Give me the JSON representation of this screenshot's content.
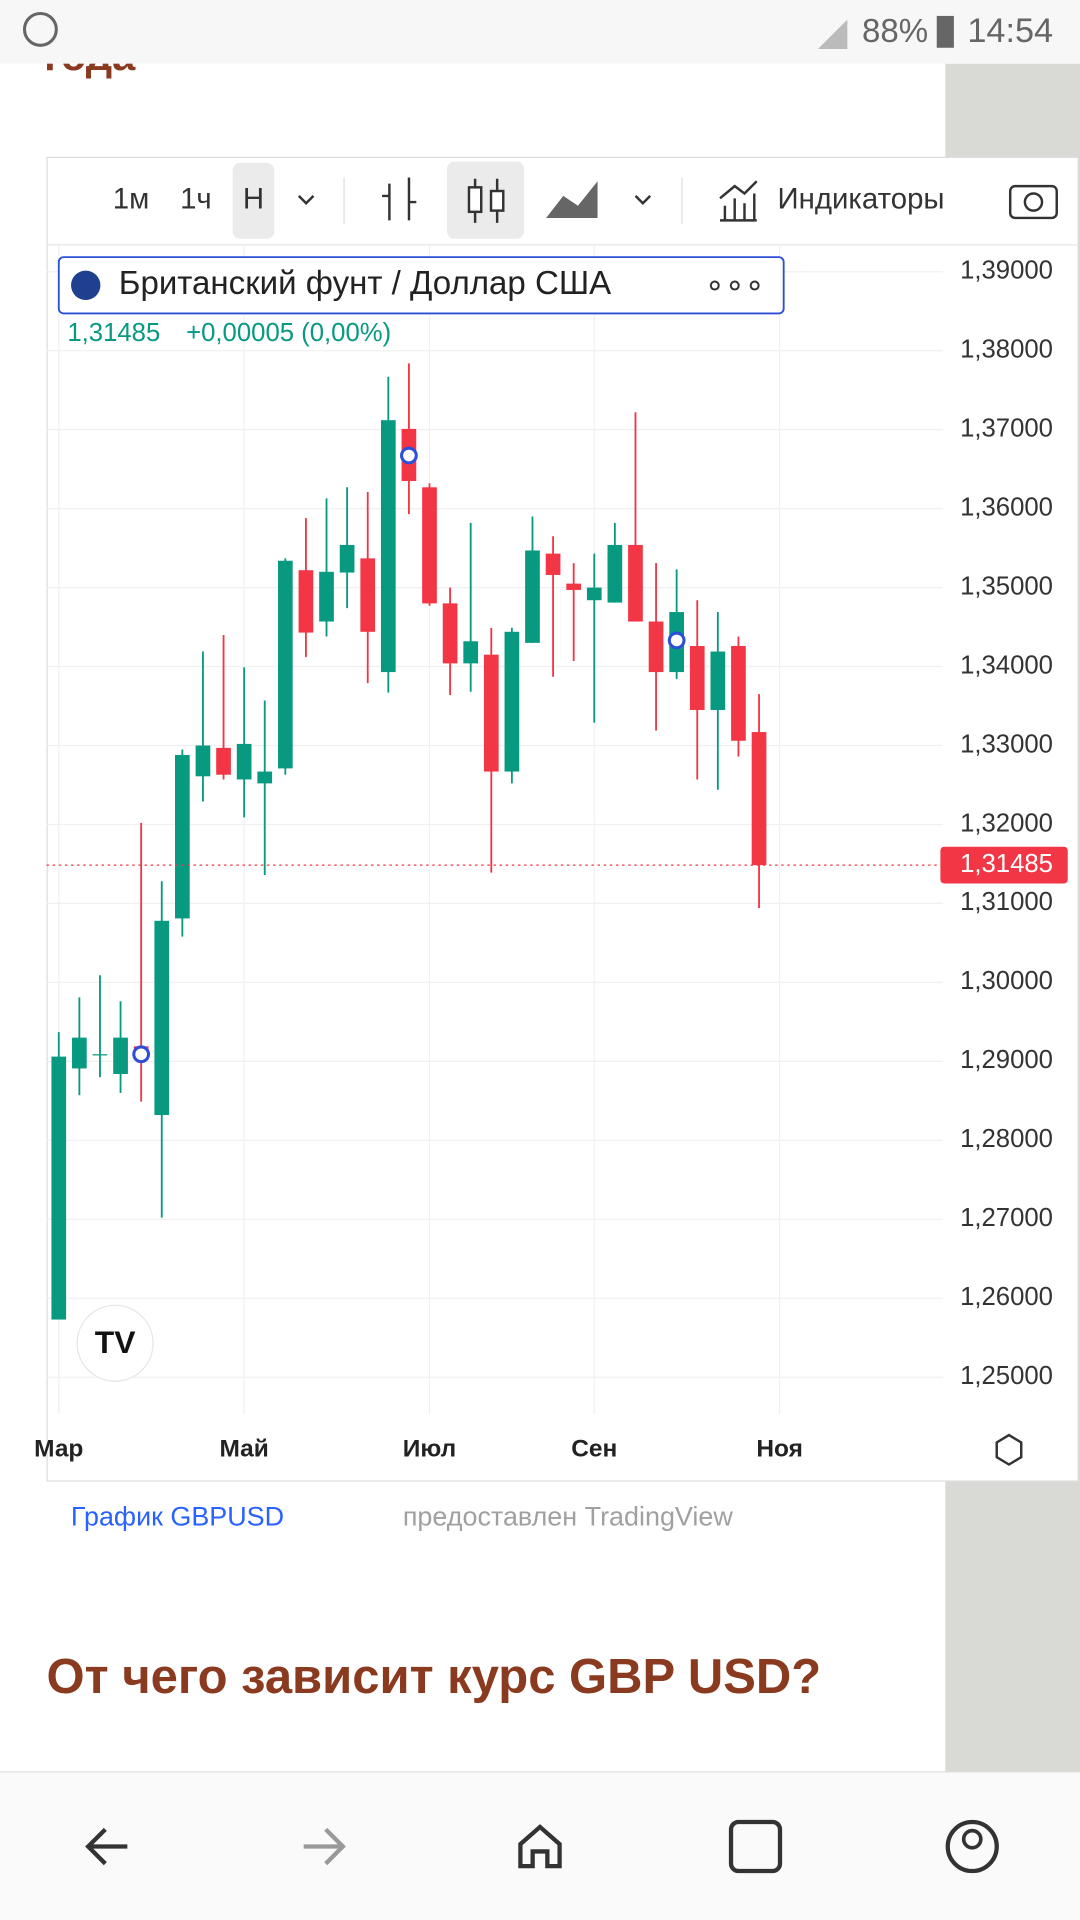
{
  "status_bar": {
    "battery": "88%",
    "time": "14:54"
  },
  "article": {
    "heading_top": "года",
    "heading": "От чего зависит курс GBP USD?"
  },
  "toolbar": {
    "intervals": [
      "1м",
      "1ч",
      "Н"
    ],
    "indicators": "Индикаторы"
  },
  "caption": {
    "link": "График GBPUSD",
    "text": "предоставлен TradingView"
  },
  "chart_data": {
    "type": "candlestick",
    "title": "Британский фунт / Доллар США",
    "change": "+0,00005 (0,00%)",
    "last_price": {
      "value": 1.31485,
      "label": "1,31485"
    },
    "x_labels": [
      "Мар",
      "Май",
      "Июл",
      "Сен",
      "Ноя"
    ],
    "up_color": "#089981",
    "down_color": "#f23645",
    "ylim": [
      1.2453,
      1.3934
    ],
    "yticks": [
      {
        "value": 1.39,
        "label": "1,39000"
      },
      {
        "value": 1.38,
        "label": "1,38000"
      },
      {
        "value": 1.37,
        "label": "1,37000"
      },
      {
        "value": 1.36,
        "label": "1,36000"
      },
      {
        "value": 1.35,
        "label": "1,35000"
      },
      {
        "value": 1.34,
        "label": "1,34000"
      },
      {
        "value": 1.33,
        "label": "1,33000"
      },
      {
        "value": 1.32,
        "label": "1,32000"
      },
      {
        "value": 1.31,
        "label": "1,31000"
      },
      {
        "value": 1.3,
        "label": "1,30000"
      },
      {
        "value": 1.29,
        "label": "1,29000"
      },
      {
        "value": 1.28,
        "label": "1,28000"
      },
      {
        "value": 1.27,
        "label": "1,27000"
      },
      {
        "value": 1.26,
        "label": "1,26000"
      },
      {
        "value": 1.25,
        "label": "1,25000"
      }
    ],
    "grid": true,
    "candles": {
      "open": [
        1.2573,
        1.2891,
        1.2908,
        1.2884,
        1.2919,
        1.2832,
        1.3081,
        1.3261,
        1.3297,
        1.3257,
        1.3252,
        1.3271,
        1.3522,
        1.3457,
        1.3519,
        1.3537,
        1.3393,
        1.3701,
        1.3627,
        1.348,
        1.3404,
        1.3415,
        1.3267,
        1.343,
        1.3543,
        1.3505,
        1.3484,
        1.3481,
        1.3554,
        1.3457,
        1.3393,
        1.3426,
        1.3345,
        1.3426,
        1.3317
      ],
      "high": [
        1.2937,
        1.2981,
        1.3009,
        1.2976,
        1.3202,
        1.3128,
        1.3295,
        1.3419,
        1.344,
        1.3399,
        1.3357,
        1.3537,
        1.3588,
        1.3613,
        1.3627,
        1.3621,
        1.3767,
        1.3784,
        1.3632,
        1.35,
        1.3582,
        1.3449,
        1.3449,
        1.359,
        1.3565,
        1.3531,
        1.3543,
        1.3582,
        1.3722,
        1.3531,
        1.3523,
        1.3484,
        1.3469,
        1.3438,
        1.3365
      ],
      "low": [
        1.2573,
        1.2857,
        1.288,
        1.286,
        1.2849,
        1.2702,
        1.3058,
        1.3229,
        1.3257,
        1.3209,
        1.3136,
        1.3263,
        1.3412,
        1.3438,
        1.3474,
        1.3379,
        1.3367,
        1.3593,
        1.3477,
        1.3364,
        1.3368,
        1.3139,
        1.3252,
        1.343,
        1.3387,
        1.3407,
        1.3329,
        1.3481,
        1.3457,
        1.3319,
        1.3384,
        1.3257,
        1.3244,
        1.3286,
        1.3094
      ],
      "close": [
        1.2906,
        1.293,
        1.2909,
        1.293,
        1.2902,
        1.3078,
        1.3288,
        1.33,
        1.3263,
        1.3302,
        1.3267,
        1.3534,
        1.3443,
        1.352,
        1.3554,
        1.3444,
        1.3712,
        1.3635,
        1.348,
        1.3404,
        1.3432,
        1.3267,
        1.3444,
        1.3547,
        1.3516,
        1.3497,
        1.35,
        1.3554,
        1.3457,
        1.3393,
        1.3469,
        1.3345,
        1.3419,
        1.3306,
        1.31485
      ]
    }
  }
}
